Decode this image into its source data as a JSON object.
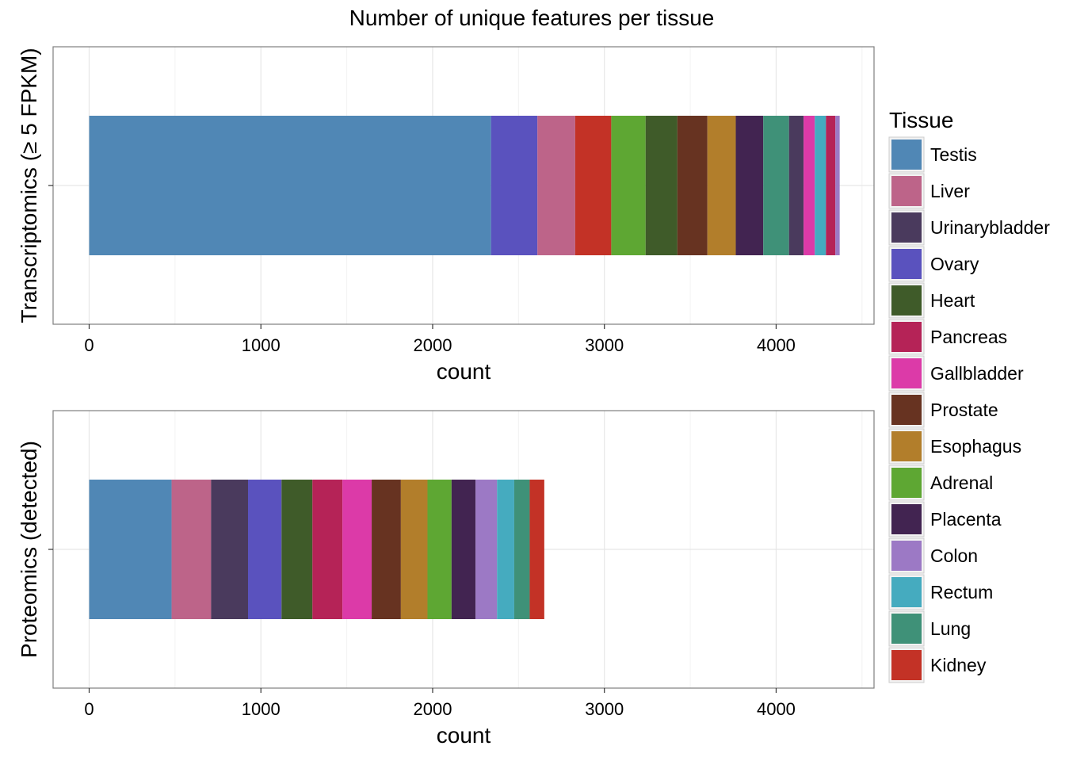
{
  "chart_data": {
    "type": "bar",
    "orientation": "horizontal-stacked",
    "title": "Number of unique features per tissue",
    "legend": {
      "title": "Tissue",
      "placement": "right",
      "entries": [
        {
          "name": "Testis",
          "color": "#5087B5"
        },
        {
          "name": "Liver",
          "color": "#BD6489"
        },
        {
          "name": "Urinarybladder",
          "color": "#4A3A5D"
        },
        {
          "name": "Ovary",
          "color": "#5A52BE"
        },
        {
          "name": "Heart",
          "color": "#3F5B29"
        },
        {
          "name": "Pancreas",
          "color": "#B52357"
        },
        {
          "name": "Gallbladder",
          "color": "#DC3AA8"
        },
        {
          "name": "Prostate",
          "color": "#673321"
        },
        {
          "name": "Esophagus",
          "color": "#B27E2B"
        },
        {
          "name": "Adrenal",
          "color": "#5EA733"
        },
        {
          "name": "Placenta",
          "color": "#422451"
        },
        {
          "name": "Colon",
          "color": "#9C79C5"
        },
        {
          "name": "Rectum",
          "color": "#45ABBF"
        },
        {
          "name": "Lung",
          "color": "#3F9178"
        },
        {
          "name": "Kidney",
          "color": "#C33226"
        }
      ]
    },
    "panels": [
      {
        "ylabel": "Transcriptomics (≥ 5 FPKM)",
        "xlabel": "count",
        "xlim": [
          -210,
          4570
        ],
        "xticks": [
          0,
          1000,
          2000,
          3000,
          4000
        ],
        "grid": true,
        "segments": [
          {
            "tissue": "Testis",
            "value": 2340
          },
          {
            "tissue": "Ovary",
            "value": 270
          },
          {
            "tissue": "Liver",
            "value": 220
          },
          {
            "tissue": "Kidney",
            "value": 210
          },
          {
            "tissue": "Adrenal",
            "value": 200
          },
          {
            "tissue": "Heart",
            "value": 185
          },
          {
            "tissue": "Prostate",
            "value": 175
          },
          {
            "tissue": "Esophagus",
            "value": 165
          },
          {
            "tissue": "Placenta",
            "value": 160
          },
          {
            "tissue": "Lung",
            "value": 150
          },
          {
            "tissue": "Urinarybladder",
            "value": 85
          },
          {
            "tissue": "Gallbladder",
            "value": 65
          },
          {
            "tissue": "Rectum",
            "value": 65
          },
          {
            "tissue": "Pancreas",
            "value": 55
          },
          {
            "tissue": "Colon",
            "value": 25
          }
        ]
      },
      {
        "ylabel": "Proteomics (detected)",
        "xlabel": "count",
        "xlim": [
          -210,
          4570
        ],
        "xticks": [
          0,
          1000,
          2000,
          3000,
          4000
        ],
        "grid": true,
        "segments": [
          {
            "tissue": "Testis",
            "value": 480
          },
          {
            "tissue": "Liver",
            "value": 230
          },
          {
            "tissue": "Urinarybladder",
            "value": 215
          },
          {
            "tissue": "Ovary",
            "value": 195
          },
          {
            "tissue": "Heart",
            "value": 180
          },
          {
            "tissue": "Pancreas",
            "value": 175
          },
          {
            "tissue": "Gallbladder",
            "value": 170
          },
          {
            "tissue": "Prostate",
            "value": 170
          },
          {
            "tissue": "Esophagus",
            "value": 155
          },
          {
            "tissue": "Adrenal",
            "value": 140
          },
          {
            "tissue": "Placenta",
            "value": 140
          },
          {
            "tissue": "Colon",
            "value": 125
          },
          {
            "tissue": "Rectum",
            "value": 100
          },
          {
            "tissue": "Lung",
            "value": 90
          },
          {
            "tissue": "Kidney",
            "value": 85
          }
        ]
      }
    ]
  }
}
